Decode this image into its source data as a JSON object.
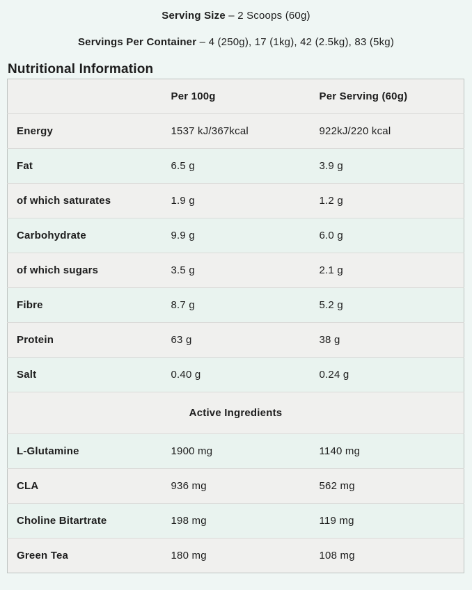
{
  "header": {
    "serving_size": {
      "label": "Serving Size",
      "sep": "–",
      "value": "2 Scoops (60g)"
    },
    "servings_per_container": {
      "label": "Servings Per Container",
      "sep": "–",
      "value": "4 (250g), 17 (1kg), 42 (2.5kg), 83 (5kg)"
    },
    "section_title": "Nutritional Information"
  },
  "table": {
    "columns": [
      "",
      "Per 100g",
      "Per Serving (60g)"
    ],
    "rows": [
      {
        "label": "Energy",
        "per_100g": "1537 kJ/367kcal",
        "per_serving": "922kJ/220 kcal"
      },
      {
        "label": "Fat",
        "per_100g": "6.5 g",
        "per_serving": "3.9 g"
      },
      {
        "label": "of which saturates",
        "per_100g": "1.9 g",
        "per_serving": "1.2 g"
      },
      {
        "label": "Carbohydrate",
        "per_100g": "9.9 g",
        "per_serving": "6.0 g"
      },
      {
        "label": "of which sugars",
        "per_100g": "3.5 g",
        "per_serving": "2.1 g"
      },
      {
        "label": "Fibre",
        "per_100g": "8.7 g",
        "per_serving": "5.2 g"
      },
      {
        "label": "Protein",
        "per_100g": "63 g",
        "per_serving": "38 g"
      },
      {
        "label": "Salt",
        "per_100g": "0.40 g",
        "per_serving": "0.24 g"
      }
    ],
    "section_header": "Active Ingredients",
    "active_rows": [
      {
        "label": "L-Glutamine",
        "per_100g": "1900 mg",
        "per_serving": "1140 mg"
      },
      {
        "label": "CLA",
        "per_100g": "936 mg",
        "per_serving": "562 mg"
      },
      {
        "label": "Choline Bitartrate",
        "per_100g": "198 mg",
        "per_serving": "119 mg"
      },
      {
        "label": "Green Tea",
        "per_100g": "180 mg",
        "per_serving": "108 mg"
      }
    ]
  },
  "colors": {
    "page_bg": "#eff6f4",
    "row_gray": "#f0f0ee",
    "row_mint": "#e9f3ef",
    "border_outer": "#bdc3c0",
    "border_divider": "#dadad8",
    "text": "#1d1d1d"
  }
}
